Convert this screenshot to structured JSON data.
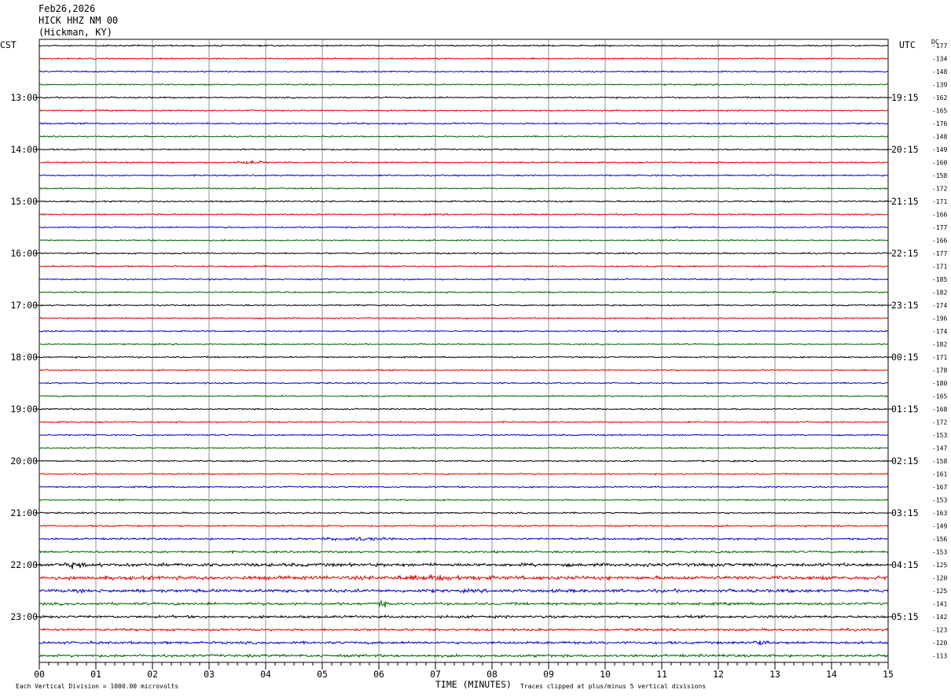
{
  "header": {
    "date": "Feb26,2026",
    "station": "HICK HHZ NM 00",
    "location": "(Hickman, KY)"
  },
  "left_axis_title": "CST",
  "right_axis_title": "UTC",
  "dc_label": "DC",
  "footer": {
    "scale_note": "Each Vertical Division = 1000.00 microvolts",
    "xlabel": "TIME (MINUTES)",
    "clip_note": "Traces clipped at plus/minus 5 vertical divisions"
  },
  "colors": {
    "cycle": [
      "#000000",
      "#e00000",
      "#0000d0",
      "#006400"
    ],
    "grid": "#909090",
    "frame": "#000000"
  },
  "chart_data": {
    "type": "line",
    "title": "HICK HHZ NM 00",
    "xlabel": "TIME (MINUTES)",
    "xlim": [
      0,
      15
    ],
    "x_ticks": [
      "00",
      "01",
      "02",
      "03",
      "04",
      "05",
      "06",
      "07",
      "08",
      "09",
      "10",
      "11",
      "12",
      "13",
      "14",
      "15"
    ],
    "trace_minutes": 15,
    "traces_per_hour": 4,
    "left_hour_labels": [
      "13:00",
      "14:00",
      "15:00",
      "16:00",
      "17:00",
      "18:00",
      "19:00",
      "20:00",
      "21:00",
      "22:00",
      "23:00"
    ],
    "right_hour_labels": [
      "19:15",
      "20:15",
      "21:15",
      "22:15",
      "23:15",
      "00:15",
      "01:15",
      "02:15",
      "03:15",
      "04:15",
      "05:15"
    ],
    "first_labeled_trace_index": 4,
    "dc_offsets": [
      -177,
      -134,
      -148,
      -139,
      -162,
      -165,
      -176,
      -148,
      -149,
      -160,
      -158,
      -172,
      -171,
      -166,
      -177,
      -166,
      -177,
      -171,
      -185,
      -182,
      -174,
      -196,
      -174,
      -182,
      -171,
      -178,
      -180,
      -165,
      -168,
      -172,
      -153,
      -147,
      -158,
      -161,
      -167,
      -153,
      -163,
      -149,
      -156,
      -153,
      -125,
      -120,
      -125,
      -141,
      -142,
      -123,
      -120,
      -113
    ],
    "noise_amplitude": [
      1.2,
      1.2,
      1.2,
      1.2,
      1.2,
      1.2,
      1.3,
      1.2,
      1.2,
      1.2,
      1.2,
      1.2,
      1.3,
      1.2,
      1.2,
      1.2,
      1.2,
      1.2,
      1.2,
      1.2,
      1.2,
      1.2,
      1.2,
      1.2,
      1.2,
      1.2,
      1.2,
      1.2,
      1.2,
      1.2,
      1.2,
      1.2,
      1.2,
      1.2,
      1.3,
      1.3,
      1.3,
      1.4,
      1.6,
      1.8,
      2.8,
      3.2,
      2.8,
      2.2,
      2.2,
      2.0,
      2.2,
      2.2
    ],
    "bursts": [
      {
        "trace": 9,
        "minute": 3.75,
        "width": 0.35,
        "amp": 2.5
      },
      {
        "trace": 38,
        "minute": 5.6,
        "width": 0.7,
        "amp": 2.5
      },
      {
        "trace": 40,
        "minute": 0.6,
        "width": 0.3,
        "amp": 3.5
      },
      {
        "trace": 41,
        "minute": 7.0,
        "width": 1.2,
        "amp": 2.0
      },
      {
        "trace": 43,
        "minute": 6.05,
        "width": 0.15,
        "amp": 4.0
      },
      {
        "trace": 46,
        "minute": 12.7,
        "width": 0.4,
        "amp": 2.5
      }
    ]
  }
}
